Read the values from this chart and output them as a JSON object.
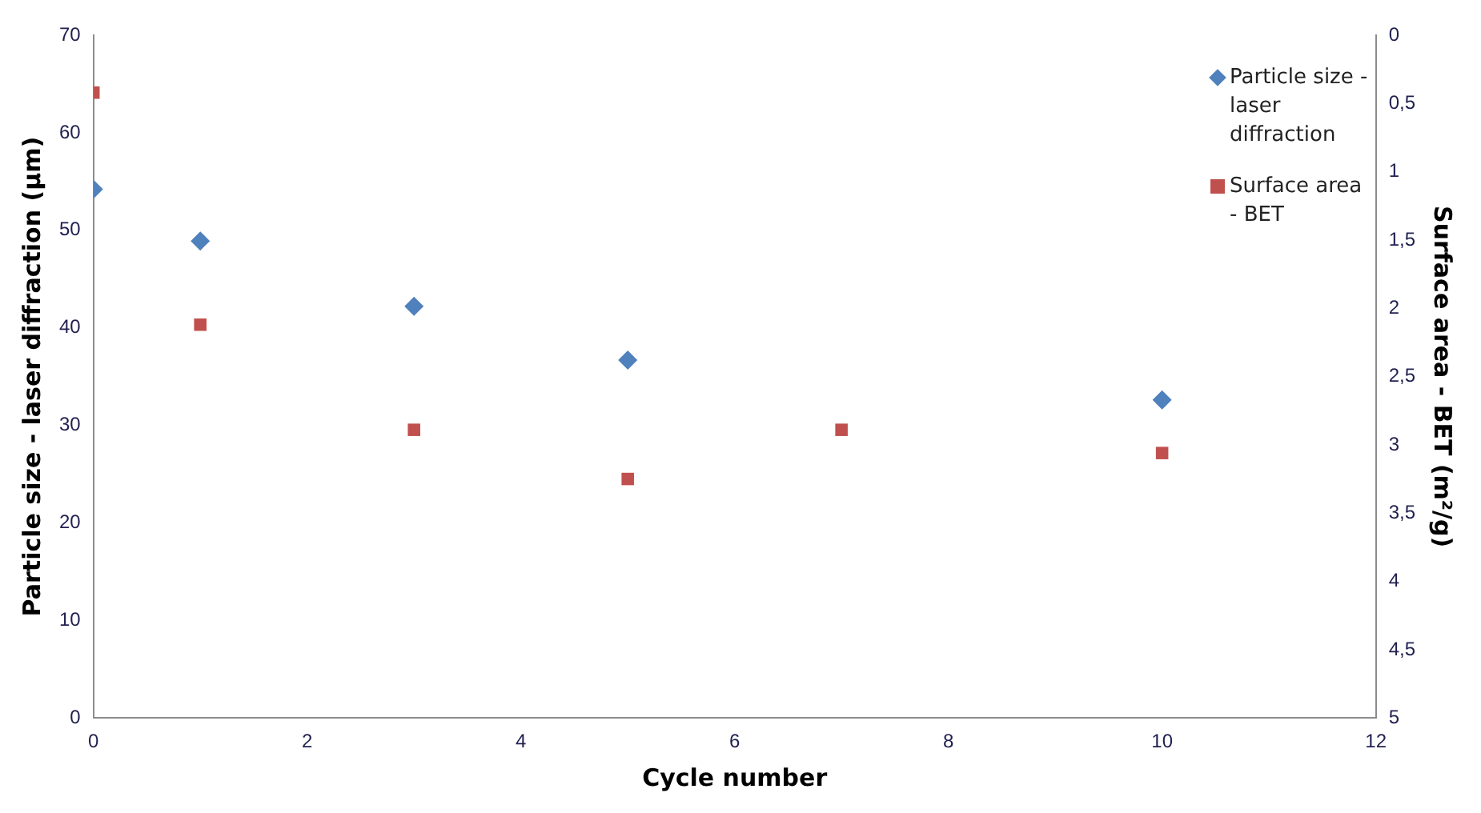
{
  "chart_data": {
    "type": "scatter",
    "xlabel": "Cycle number",
    "ylabel": "Particle size - laser diffraction (µm)",
    "y2label": "Surface area - BET (m²/g)",
    "xlim": [
      0,
      12
    ],
    "xticks": [
      0,
      2,
      4,
      6,
      8,
      10,
      12
    ],
    "ylim": [
      0,
      70
    ],
    "yticks": [
      0,
      10,
      20,
      30,
      40,
      50,
      60,
      70
    ],
    "y2lim": [
      5,
      0
    ],
    "y2ticks": [
      0,
      {
        "value": 0.5,
        "label": "0,5"
      },
      1,
      {
        "value": 1.5,
        "label": "1,5"
      },
      2,
      {
        "value": 2.5,
        "label": "2,5"
      },
      3,
      {
        "value": 3.5,
        "label": "3,5"
      },
      4,
      {
        "value": 4.5,
        "label": "4,5"
      },
      5
    ],
    "grid": false,
    "legend": "top right",
    "series": [
      {
        "name": "Particle size - laser diffraction",
        "color": "#4f81bd",
        "marker": "diamond",
        "x": [
          0,
          1,
          3,
          5,
          10
        ],
        "values": [
          54.2,
          48.9,
          42.2,
          36.7,
          32.6
        ]
      },
      {
        "name": "Surface area - BET",
        "color": "#c0504d",
        "marker": "square",
        "axis": "y2",
        "x": [
          0,
          1,
          3,
          5,
          7,
          10
        ],
        "values": [
          0.42,
          2.12,
          2.89,
          3.25,
          2.89,
          3.06
        ]
      }
    ]
  }
}
